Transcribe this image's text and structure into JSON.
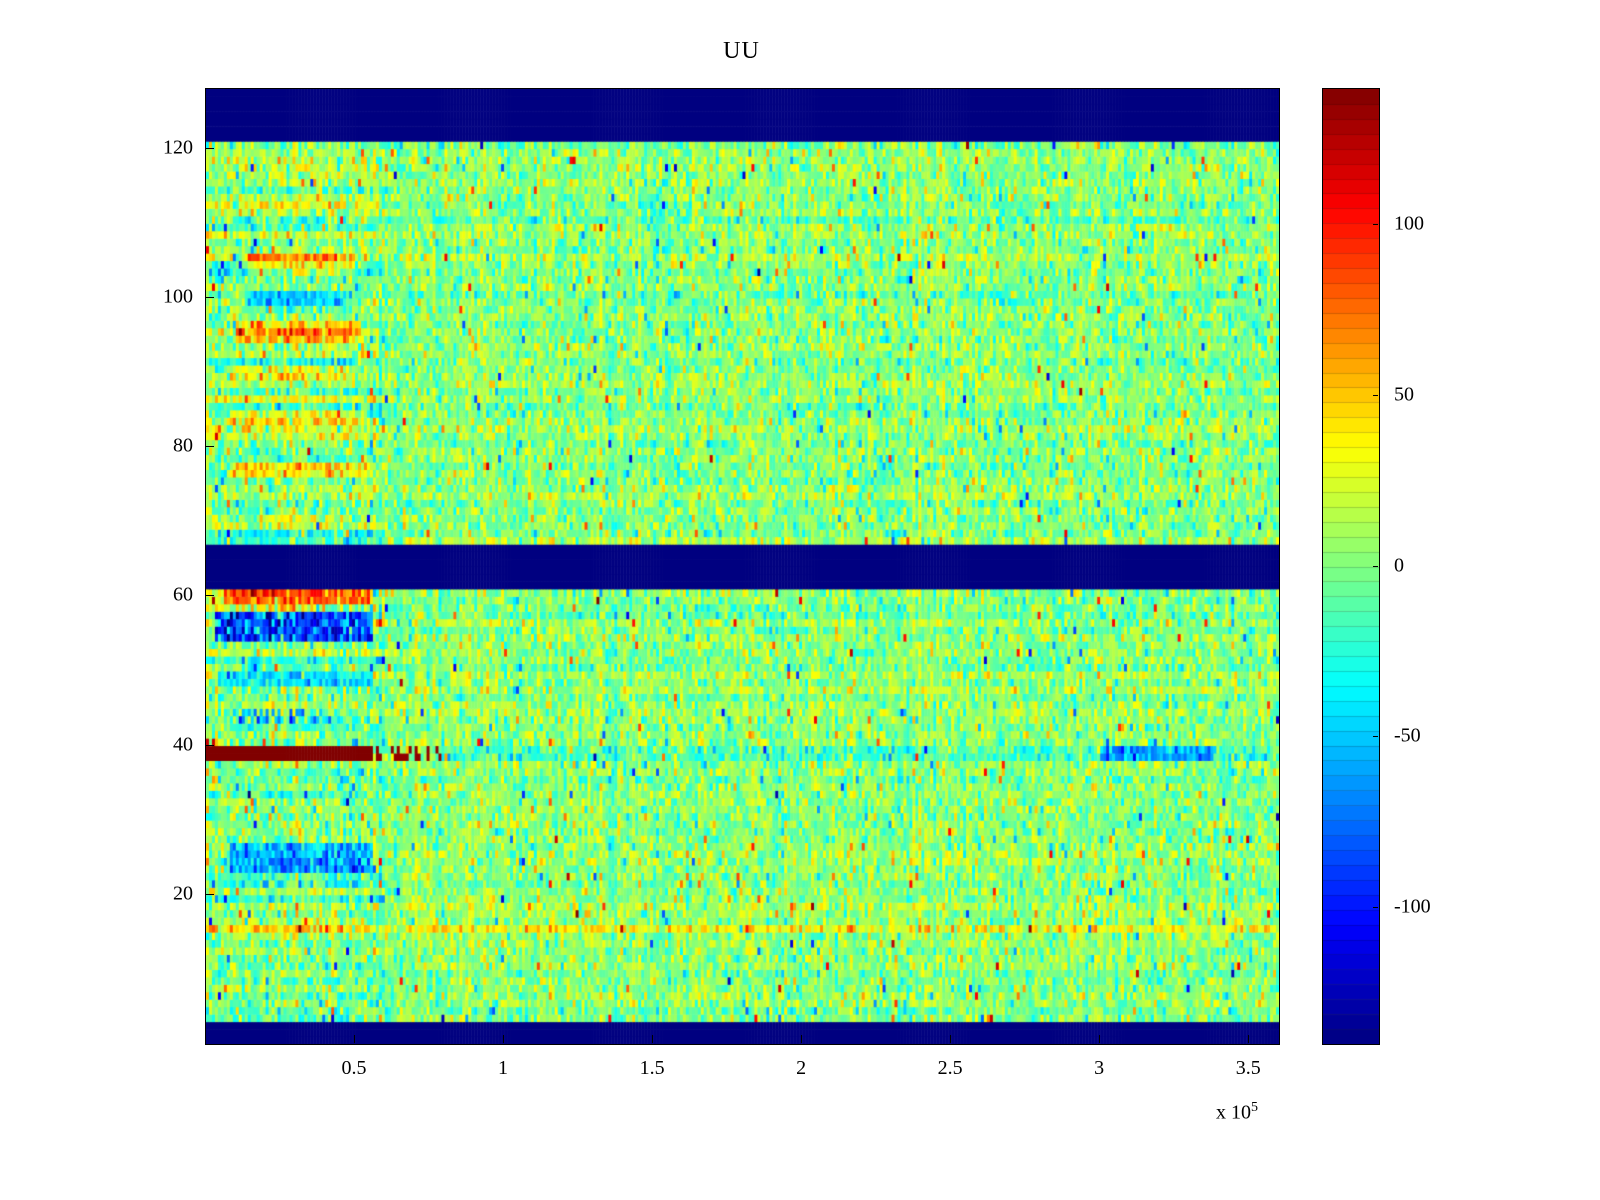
{
  "chart_data": {
    "type": "heatmap",
    "title": "UU",
    "colormap": "jet",
    "x": {
      "range": [
        0,
        360000
      ],
      "ticks": [
        {
          "label": "0.5",
          "value": 50000
        },
        {
          "label": "1",
          "value": 100000
        },
        {
          "label": "1.5",
          "value": 150000
        },
        {
          "label": "2",
          "value": 200000
        },
        {
          "label": "2.5",
          "value": 250000
        },
        {
          "label": "3",
          "value": 300000
        },
        {
          "label": "3.5",
          "value": 350000
        }
      ],
      "exponent": {
        "prefix": "x 10",
        "power": "5"
      }
    },
    "y": {
      "range": [
        0,
        128
      ],
      "ticks": [
        {
          "label": "20",
          "value": 20
        },
        {
          "label": "40",
          "value": 40
        },
        {
          "label": "60",
          "value": 60
        },
        {
          "label": "80",
          "value": 80
        },
        {
          "label": "100",
          "value": 100
        },
        {
          "label": "120",
          "value": 120
        }
      ]
    },
    "colorbar": {
      "clim": [
        -140,
        140
      ],
      "segments": 64,
      "ticks": [
        {
          "label": "100",
          "value": 100
        },
        {
          "label": "50",
          "value": 50
        },
        {
          "label": "0",
          "value": 0
        },
        {
          "label": "-50",
          "value": -50
        },
        {
          "label": "-100",
          "value": -100
        }
      ]
    },
    "grid": {
      "nx": 360,
      "ny": 128
    },
    "noise": {
      "mean": 3,
      "std": 18,
      "row_std": 4.5,
      "col_std": 5,
      "left_x_max": 60000,
      "left_row_std": 12,
      "left_std_gain": 1.15,
      "spike_prob": 0.018,
      "spike_min": 35,
      "spike_span": 70,
      "seed": 1234567
    },
    "features": [
      {
        "name": "left-orange-row-60",
        "y": [
          59.3,
          61.0
        ],
        "x": [
          6000,
          56000
        ],
        "mode": "bias",
        "value": 65
      },
      {
        "name": "left-red-dashes-58",
        "y": [
          57.6,
          58.8
        ],
        "x": [
          0,
          30000
        ],
        "mode": "bias",
        "value": 40,
        "prob": 0.5
      },
      {
        "name": "left-blue-band-56",
        "y": [
          54.3,
          57.6
        ],
        "x": [
          3000,
          56000
        ],
        "mode": "set",
        "value": -85,
        "noise": 30
      },
      {
        "name": "left-cyan-row-49",
        "y": [
          48.4,
          50.0
        ],
        "x": [
          4000,
          56000
        ],
        "mode": "set",
        "value": -40,
        "noise": 18
      },
      {
        "name": "left-blue-dashes-44",
        "y": [
          43.2,
          44.6
        ],
        "x": [
          10000,
          42000
        ],
        "mode": "set",
        "value": -55,
        "noise": 22,
        "prob": 0.6
      },
      {
        "name": "hot-line-39",
        "y": [
          38.3,
          39.6
        ],
        "x": [
          0,
          56000
        ],
        "mode": "set",
        "value": 140
      },
      {
        "name": "hot-line-39-tail",
        "y": [
          38.3,
          39.6
        ],
        "x": [
          56000,
          79000
        ],
        "mode": "set",
        "value": 135,
        "prob": 0.45
      },
      {
        "name": "line-39-cool",
        "y": [
          38.3,
          39.6
        ],
        "x": [
          79000,
          360000
        ],
        "mode": "bias",
        "value": -18
      },
      {
        "name": "line-39-blue-patch",
        "y": [
          38.3,
          39.6
        ],
        "x": [
          300000,
          338000
        ],
        "mode": "set",
        "value": -65,
        "noise": 18
      },
      {
        "name": "left-red-blob-40",
        "y": [
          39.6,
          41.2
        ],
        "x": [
          0,
          3000
        ],
        "mode": "set",
        "value": 120,
        "prob": 0.7
      },
      {
        "name": "left-blue-band-25",
        "y": [
          23.3,
          26.6
        ],
        "x": [
          8000,
          56000
        ],
        "mode": "set",
        "value": -60,
        "noise": 25
      },
      {
        "name": "yellow-row-16",
        "y": [
          14.8,
          16.4
        ],
        "x": [
          0,
          360000
        ],
        "mode": "bias",
        "value": 30
      },
      {
        "name": "left-orange-row-77",
        "y": [
          76.3,
          78.2
        ],
        "x": [
          8000,
          56000
        ],
        "mode": "bias",
        "value": 45
      },
      {
        "name": "left-yellow-row-84",
        "y": [
          83.5,
          85.0
        ],
        "x": [
          8000,
          50000
        ],
        "mode": "bias",
        "value": 35
      },
      {
        "name": "left-yellow-row-90",
        "y": [
          89.4,
          91.0
        ],
        "x": [
          8000,
          48000
        ],
        "mode": "bias",
        "value": 30
      },
      {
        "name": "left-orange-row-96",
        "y": [
          94.5,
          96.6
        ],
        "x": [
          10000,
          52000
        ],
        "mode": "bias",
        "value": 55
      },
      {
        "name": "left-cyan-row-100",
        "y": [
          99.3,
          100.6
        ],
        "x": [
          14000,
          46000
        ],
        "mode": "set",
        "value": -45,
        "noise": 15
      },
      {
        "name": "left-orange-rows-105",
        "y": [
          103.5,
          106.0
        ],
        "x": [
          14000,
          50000
        ],
        "mode": "bias",
        "value": 45
      },
      {
        "name": "bottom-blank-band",
        "y": [
          0,
          2.8
        ],
        "x": [
          0,
          360000
        ],
        "mode": "set",
        "value": -140
      },
      {
        "name": "middle-blank-band",
        "y": [
          61.0,
          67.0
        ],
        "x": [
          0,
          360000
        ],
        "mode": "set",
        "value": -140
      },
      {
        "name": "top-blank-band",
        "y": [
          121.5,
          128
        ],
        "x": [
          0,
          360000
        ],
        "mode": "set",
        "value": -140
      }
    ]
  }
}
